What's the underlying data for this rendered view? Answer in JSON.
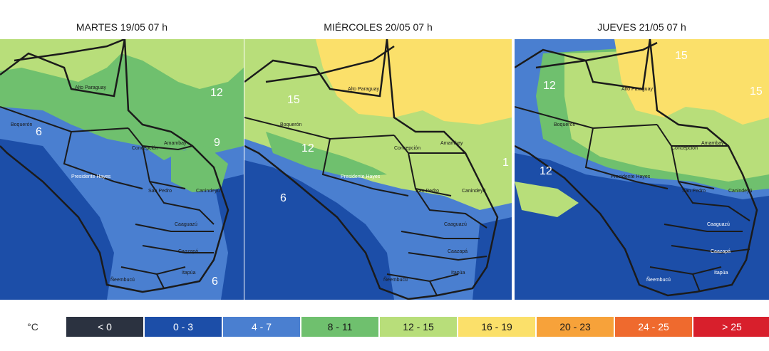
{
  "panels": [
    {
      "title": "MARTES 19/05 07 h",
      "labels": {
        "alto": "Alto Paraguay",
        "boqueron": "Boquerón",
        "amambay": "Amambay",
        "concepcion": "Concepción",
        "hayes": "Presidente Hayes",
        "sanpedro": "San Pedro",
        "canindeyu": "Canindeyú",
        "caaguazu": "Caaguazú",
        "caazapa": "Caazapá",
        "itapua": "Itapúa",
        "ñeembucu": "Ñeembucú"
      },
      "contours": [
        "12",
        "6",
        "9",
        "6"
      ]
    },
    {
      "title": "MIÉRCOLES 20/05 07 h",
      "labels": {
        "alto": "Alto Paraguay",
        "boqueron": "Boquerón",
        "amambay": "Amambay",
        "concepcion": "Concepción",
        "hayes": "Presidente Hayes",
        "sanpedro": "San Pedro",
        "canindeyu": "Canindeyú",
        "caaguazu": "Caaguazú",
        "caazapa": "Caazapá",
        "itapua": "Itapúa",
        "ñeembucu": "Ñeembucú"
      },
      "contours": [
        "15",
        "12",
        "6",
        "1"
      ]
    },
    {
      "title": "JUEVES 21/05 07 h",
      "labels": {
        "alto": "Alto Paraguay",
        "boqueron": "Boquerón",
        "amambay": "Amambay",
        "concepcion": "Concepción",
        "hayes": "Presidente Hayes",
        "sanpedro": "San Pedro",
        "canindeyu": "Canindeyú",
        "caaguazu": "Caaguazú",
        "caazapa": "Caazapá",
        "itapua": "Itapúa",
        "ñeembucu": "Ñeembucú"
      },
      "contours": [
        "15",
        "15",
        "12",
        "12"
      ]
    }
  ],
  "legend": {
    "unit": "°C",
    "items": [
      {
        "label": "< 0",
        "color": "#2b3240",
        "text": "#ffffff"
      },
      {
        "label": "0 - 3",
        "color": "#1c4ea8",
        "text": "#ffffff"
      },
      {
        "label": "4 - 7",
        "color": "#4a7fd0",
        "text": "#ffffff"
      },
      {
        "label": "8 - 11",
        "color": "#6fc06e",
        "text": "#1a1a1a"
      },
      {
        "label": "12 - 15",
        "color": "#b8de7a",
        "text": "#1a1a1a"
      },
      {
        "label": "16 - 19",
        "color": "#fbe06a",
        "text": "#1a1a1a"
      },
      {
        "label": "20 - 23",
        "color": "#f7a23a",
        "text": "#1a1a1a"
      },
      {
        "label": "24 - 25",
        "color": "#ef6a2e",
        "text": "#ffffff"
      },
      {
        "label": "> 25",
        "color": "#d81f2c",
        "text": "#ffffff"
      }
    ]
  }
}
